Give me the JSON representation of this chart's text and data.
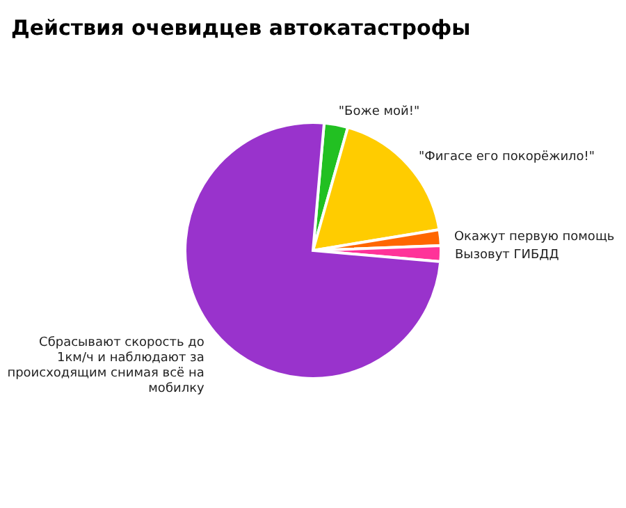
{
  "chart_data": {
    "type": "pie",
    "title": "Действия очевидцев автокатастрофы",
    "categories": [
      "\"Боже мой!\"",
      "\"Фигасе его покорёжило!\"",
      "Окажут первую помощь",
      "Вызовут ГИБДД",
      "Сбрасывают скорость до 1км/ч и наблюдают за происходящим снимая всё на мобилку"
    ],
    "values": [
      3,
      18,
      2,
      2,
      75
    ],
    "colors": [
      "#22c022",
      "#ffcc00",
      "#ff6600",
      "#ff3399",
      "#9933cc"
    ],
    "legend": false
  }
}
